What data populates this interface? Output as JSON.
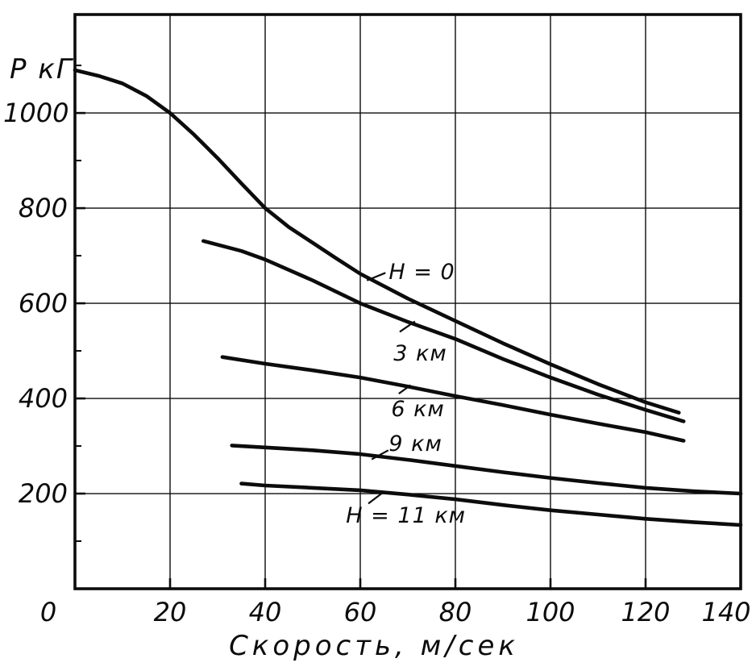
{
  "figure": {
    "background": "#ffffff",
    "ink": "#0c0c0c"
  },
  "chart_data": {
    "type": "line",
    "title": "",
    "xlabel": "Скорость, м/сек",
    "ylabel": "Р кГ",
    "xlim": [
      0,
      140
    ],
    "ylim": [
      0,
      1207
    ],
    "grid": true,
    "legend": "inline-curve-labels",
    "x_ticks": [
      0,
      20,
      40,
      60,
      80,
      100,
      120,
      140
    ],
    "x_tick_labels": [
      "0",
      "20",
      "40",
      "60",
      "80",
      "100",
      "120",
      "140"
    ],
    "y_ticks": [
      200,
      400,
      600,
      800,
      1000
    ],
    "y_tick_labels": [
      "200",
      "400",
      "600",
      "800",
      "1000"
    ],
    "y_minor_ticks": [
      100,
      300,
      500,
      700,
      900,
      1100
    ],
    "series": [
      {
        "name": "Н = 0",
        "points": [
          [
            0,
            1090
          ],
          [
            5,
            1078
          ],
          [
            10,
            1062
          ],
          [
            15,
            1036
          ],
          [
            20,
            1000
          ],
          [
            25,
            955
          ],
          [
            30,
            905
          ],
          [
            35,
            852
          ],
          [
            40,
            800
          ],
          [
            45,
            760
          ],
          [
            50,
            727
          ],
          [
            55,
            694
          ],
          [
            60,
            662
          ],
          [
            70,
            610
          ],
          [
            80,
            563
          ],
          [
            90,
            516
          ],
          [
            100,
            472
          ],
          [
            110,
            430
          ],
          [
            120,
            392
          ],
          [
            127,
            370
          ]
        ]
      },
      {
        "name": "3 км",
        "points": [
          [
            27,
            731
          ],
          [
            35,
            710
          ],
          [
            40,
            692
          ],
          [
            50,
            648
          ],
          [
            60,
            600
          ],
          [
            70,
            561
          ],
          [
            80,
            525
          ],
          [
            90,
            483
          ],
          [
            100,
            444
          ],
          [
            110,
            408
          ],
          [
            120,
            376
          ],
          [
            128,
            352
          ]
        ]
      },
      {
        "name": "6 км",
        "points": [
          [
            31,
            487
          ],
          [
            40,
            473
          ],
          [
            50,
            459
          ],
          [
            60,
            444
          ],
          [
            70,
            425
          ],
          [
            80,
            405
          ],
          [
            90,
            386
          ],
          [
            100,
            366
          ],
          [
            110,
            347
          ],
          [
            120,
            329
          ],
          [
            128,
            311
          ]
        ]
      },
      {
        "name": "9 км",
        "points": [
          [
            33,
            301
          ],
          [
            40,
            297
          ],
          [
            50,
            291
          ],
          [
            60,
            283
          ],
          [
            70,
            271
          ],
          [
            80,
            258
          ],
          [
            90,
            245
          ],
          [
            100,
            233
          ],
          [
            110,
            222
          ],
          [
            120,
            212
          ],
          [
            130,
            205
          ],
          [
            140,
            200
          ]
        ]
      },
      {
        "name": "11 км",
        "points": [
          [
            35,
            221
          ],
          [
            40,
            217
          ],
          [
            50,
            212
          ],
          [
            60,
            207
          ],
          [
            70,
            198
          ],
          [
            80,
            188
          ],
          [
            90,
            176
          ],
          [
            100,
            165
          ],
          [
            110,
            156
          ],
          [
            120,
            147
          ],
          [
            130,
            140
          ],
          [
            140,
            134
          ]
        ]
      }
    ],
    "annotations": [
      {
        "text": "Н = 0",
        "v": 66,
        "p": 692,
        "leader": [
          [
            65.3,
            664
          ],
          [
            61.4,
            648
          ]
        ]
      },
      {
        "text": "3 км",
        "v": 67,
        "p": 520,
        "leader": [
          [
            68.3,
            540
          ],
          [
            71.5,
            562
          ]
        ]
      },
      {
        "text": "6 км",
        "v": 66.5,
        "p": 404,
        "leader": [
          [
            68.1,
            410
          ],
          [
            70.6,
            428
          ]
        ]
      },
      {
        "text": "9 км",
        "v": 66,
        "p": 330,
        "leader": [
          [
            65.9,
            291
          ],
          [
            62.4,
            272
          ]
        ]
      },
      {
        "text": "Н = 11 км",
        "v": 57,
        "p": 180,
        "leader": [
          [
            61.7,
            179
          ],
          [
            65.0,
            204
          ]
        ]
      }
    ]
  }
}
